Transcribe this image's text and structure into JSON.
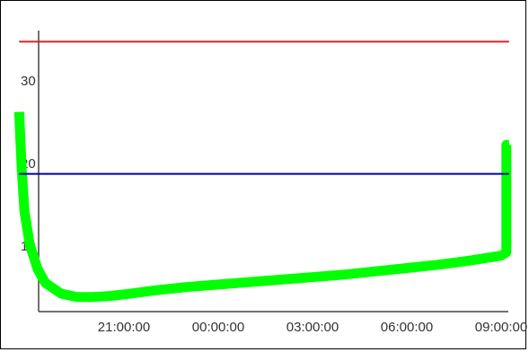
{
  "chart_data": {
    "type": "line",
    "title": "",
    "xlabel": "",
    "ylabel": "",
    "x_tick_labels": [
      "21:00:00",
      "00:00:00",
      "03:00:00",
      "06:00:00",
      "09:00:00"
    ],
    "y_tick_labels": [
      "10",
      "20",
      "30"
    ],
    "y_ticks": [
      10,
      20,
      30
    ],
    "ylim": [
      0,
      37
    ],
    "x_axis": "time",
    "grid": false,
    "legend": "none",
    "series": [
      {
        "color": "#00ff00",
        "x": [
          "17:40",
          "17:45",
          "17:50",
          "18:00",
          "18:15",
          "18:30",
          "19:00",
          "19:30",
          "20:00",
          "20:30",
          "21:00",
          "22:00",
          "23:00",
          "00:00",
          "01:00",
          "02:00",
          "03:00",
          "04:00",
          "05:00",
          "06:00",
          "07:00",
          "08:00",
          "09:00",
          "09:10",
          "09:10",
          "09:15"
        ],
        "values": [
          27,
          20,
          15,
          11,
          8,
          6.3,
          5,
          4.6,
          4.6,
          4.7,
          4.9,
          5.4,
          5.8,
          6.1,
          6.4,
          6.7,
          7.0,
          7.3,
          7.7,
          8.1,
          8.5,
          9.0,
          9.6,
          10,
          23,
          23
        ]
      },
      {
        "color": "#0000aa",
        "x": [
          "17:40",
          "09:15"
        ],
        "values": [
          19.5,
          19.5
        ]
      },
      {
        "color": "#dd2222",
        "x": [
          "17:40",
          "09:15"
        ],
        "values": [
          35.5,
          35.5
        ]
      }
    ]
  }
}
